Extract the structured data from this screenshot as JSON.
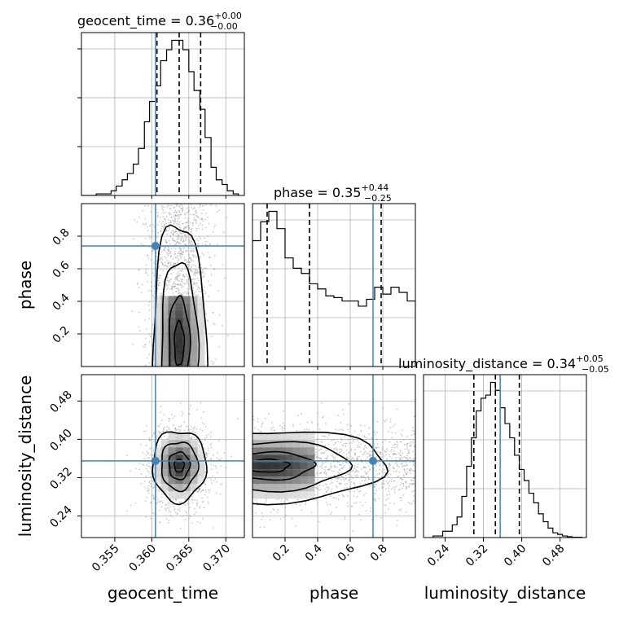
{
  "chart_data": {
    "type": "corner",
    "colors": {
      "truth": "#4682b4",
      "hist": "#000000",
      "grid": "#b0b0b0"
    },
    "parameters": [
      {
        "name": "geocent_time",
        "axis_label": "geocent_time",
        "title_prefix": "geocent_time = 0.36",
        "title_sup": "+0.00",
        "title_sub": "−0.00",
        "range": [
          0.3505,
          0.3725
        ],
        "ticks": [
          0.355,
          0.36,
          0.365,
          0.37
        ],
        "tick_labels": [
          "0.355",
          "0.360",
          "0.365",
          "0.370"
        ],
        "truth": 0.3605,
        "quantiles": [
          0.3607,
          0.3637,
          0.3666
        ],
        "hist_bins": [
          0.3505,
          0.3525,
          0.3545,
          0.3552,
          0.356,
          0.3567,
          0.3575,
          0.3582,
          0.359,
          0.3597,
          0.3605,
          0.3612,
          0.362,
          0.3627,
          0.3635,
          0.3642,
          0.365,
          0.3657,
          0.3665,
          0.3672,
          0.368,
          0.3687,
          0.3695,
          0.3702,
          0.371,
          0.3717
        ],
        "hist_values": [
          0.0,
          0.01,
          0.03,
          0.06,
          0.1,
          0.14,
          0.2,
          0.3,
          0.47,
          0.6,
          0.7,
          0.86,
          0.93,
          0.99,
          0.99,
          0.93,
          0.79,
          0.67,
          0.55,
          0.37,
          0.18,
          0.1,
          0.07,
          0.03,
          0.01
        ]
      },
      {
        "name": "phase",
        "axis_label": "phase",
        "title_prefix": "phase = 0.35",
        "title_sup": "+0.44",
        "title_sub": "−0.25",
        "range": [
          0.0,
          1.0
        ],
        "ticks": [
          0.2,
          0.4,
          0.6,
          0.8
        ],
        "tick_labels": [
          "0.2",
          "0.4",
          "0.6",
          "0.8"
        ],
        "truth": 0.74,
        "quantiles": [
          0.09,
          0.35,
          0.79
        ],
        "hist_bins": [
          0.0,
          0.05,
          0.1,
          0.15,
          0.2,
          0.25,
          0.3,
          0.35,
          0.4,
          0.45,
          0.5,
          0.55,
          0.6,
          0.65,
          0.7,
          0.75,
          0.8,
          0.85,
          0.9,
          0.95,
          1.0
        ],
        "hist_values": [
          0.73,
          0.84,
          0.9,
          0.8,
          0.63,
          0.57,
          0.54,
          0.48,
          0.45,
          0.41,
          0.4,
          0.38,
          0.38,
          0.35,
          0.39,
          0.46,
          0.42,
          0.46,
          0.43,
          0.38
        ]
      },
      {
        "name": "luminosity_distance",
        "axis_label": "luminosity_distance",
        "title_prefix": "luminosity_distance = 0.34",
        "title_sup": "+0.05",
        "title_sub": "−0.05",
        "range": [
          0.195,
          0.535
        ],
        "ticks": [
          0.24,
          0.32,
          0.4,
          0.48
        ],
        "tick_labels": [
          "0.24",
          "0.32",
          "0.40",
          "0.48"
        ],
        "truth": 0.355,
        "quantiles": [
          0.3,
          0.345,
          0.395
        ],
        "hist_bins": [
          0.215,
          0.235,
          0.255,
          0.265,
          0.275,
          0.285,
          0.295,
          0.305,
          0.315,
          0.325,
          0.335,
          0.345,
          0.355,
          0.365,
          0.375,
          0.385,
          0.395,
          0.405,
          0.415,
          0.425,
          0.435,
          0.445,
          0.455,
          0.465,
          0.475,
          0.485,
          0.495,
          0.505,
          0.525
        ],
        "hist_values": [
          0.01,
          0.04,
          0.08,
          0.13,
          0.26,
          0.45,
          0.63,
          0.8,
          0.88,
          0.9,
          0.98,
          0.93,
          0.82,
          0.72,
          0.63,
          0.52,
          0.43,
          0.36,
          0.28,
          0.22,
          0.15,
          0.1,
          0.06,
          0.03,
          0.02,
          0.01,
          0.005,
          0.002
        ]
      }
    ],
    "pairs": [
      {
        "x": "geocent_time",
        "y": "phase",
        "center": [
          0.3637,
          0.14
        ],
        "spread": [
          0.0022,
          0.32
        ],
        "truth": [
          0.3605,
          0.74
        ]
      },
      {
        "x": "geocent_time",
        "y": "luminosity_distance",
        "center": [
          0.3637,
          0.345
        ],
        "spread": [
          0.0022,
          0.045
        ],
        "truth": [
          0.3605,
          0.355
        ]
      },
      {
        "x": "phase",
        "y": "luminosity_distance",
        "center": [
          0.09,
          0.345
        ],
        "spread": [
          0.3,
          0.045
        ],
        "truth": [
          0.74,
          0.355
        ]
      }
    ]
  }
}
